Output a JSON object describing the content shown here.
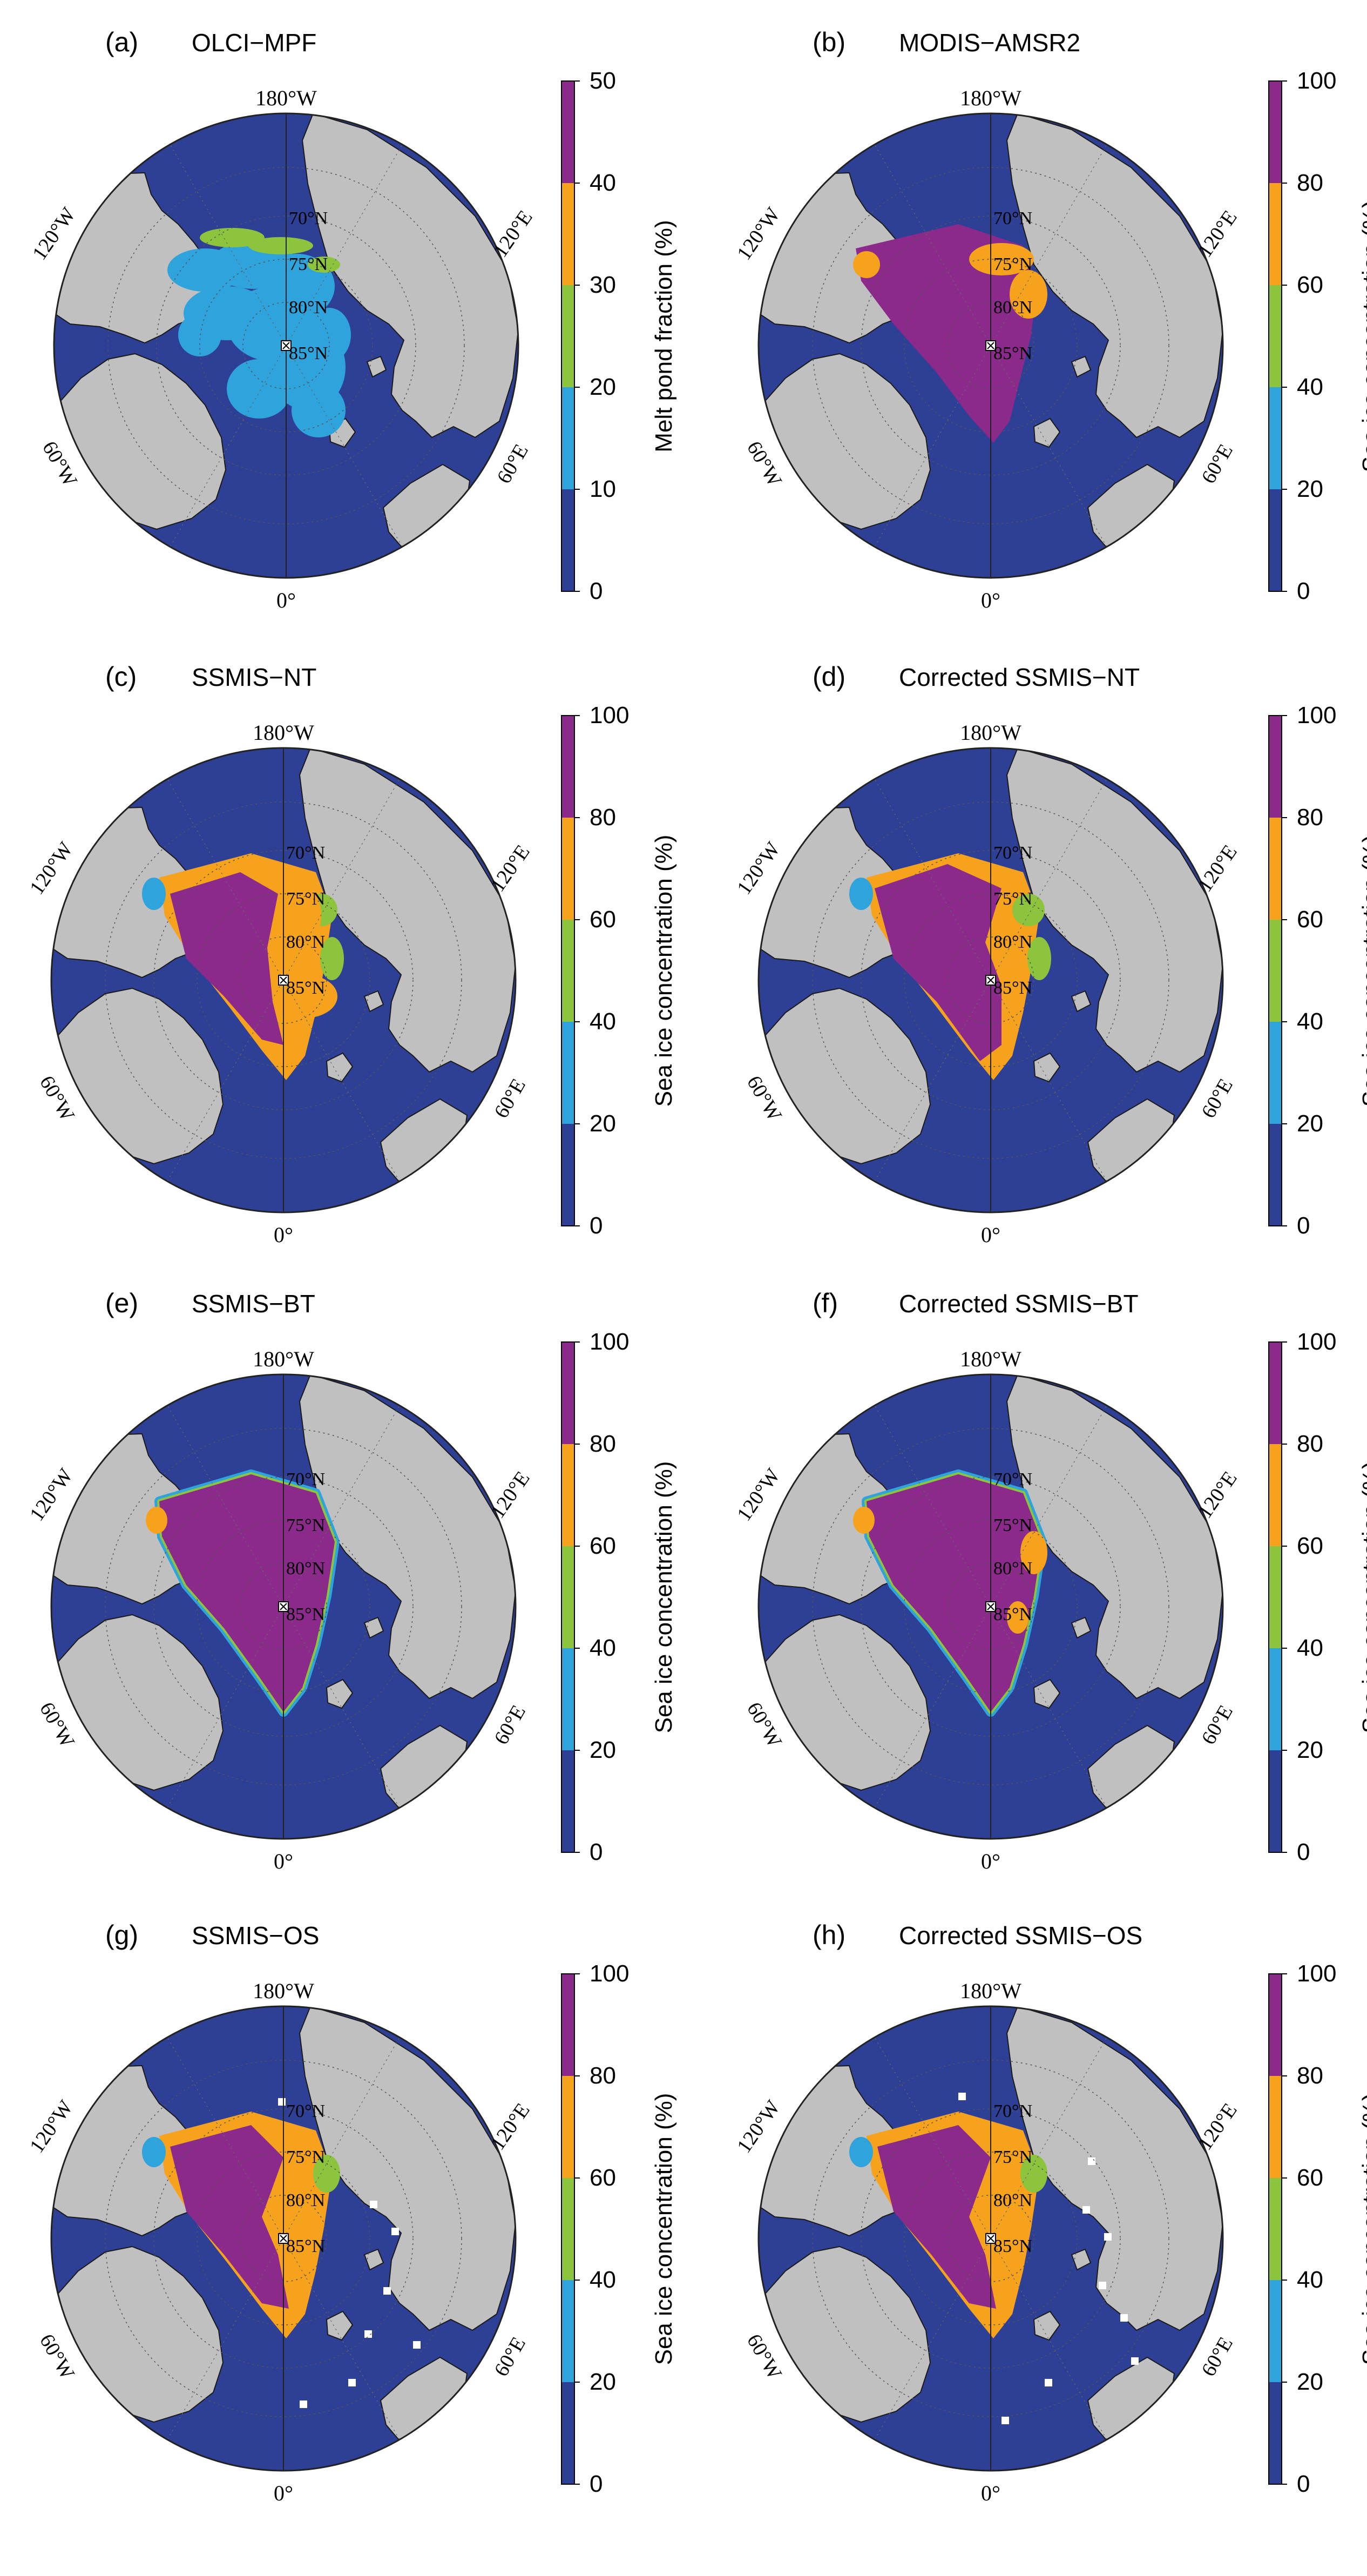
{
  "layout": "4x2 grid of polar-stereographic Arctic sea-ice maps",
  "colors": {
    "ocean": "#2e3f96",
    "land": "#c0c0c0",
    "ice_purple": "#8b2a8b",
    "ice_orange": "#f6a21c",
    "ice_green": "#8cc43e",
    "ice_light_blue": "#2ea3dc",
    "missing_white": "#ffffff",
    "coast": "#1a1a1a"
  },
  "colorbar_bins": [
    "#2e3f96",
    "#2ea3dc",
    "#8cc43e",
    "#f6a21c",
    "#8b2a8b"
  ],
  "map_labels": {
    "top": "180°W",
    "left": "120°W",
    "right": "120°E",
    "bottom_left": "60°W",
    "bottom_right": "60°E",
    "bottom": "0°",
    "lat_70": "70°N",
    "lat_75": "75°N",
    "lat_80": "80°N",
    "lat_85": "85°N"
  },
  "panels": [
    {
      "letter": "(a)",
      "title": "OLCI−MPF",
      "colorbar_label": "Melt pond fraction (%)",
      "colorbar_ticks": [
        "0",
        "10",
        "20",
        "30",
        "40",
        "50"
      ],
      "pattern": "melt_pond"
    },
    {
      "letter": "(b)",
      "title": "MODIS−AMSR2",
      "colorbar_label": "Sea ice concentration (%)",
      "colorbar_ticks": [
        "0",
        "20",
        "40",
        "60",
        "80",
        "100"
      ],
      "pattern": "modis"
    },
    {
      "letter": "(c)",
      "title": "SSMIS−NT",
      "colorbar_label": "Sea ice concentration (%)",
      "colorbar_ticks": [
        "0",
        "20",
        "40",
        "60",
        "80",
        "100"
      ],
      "pattern": "nt"
    },
    {
      "letter": "(d)",
      "title": "Corrected SSMIS−NT",
      "colorbar_label": "Sea ice concentration (%)",
      "colorbar_ticks": [
        "0",
        "20",
        "40",
        "60",
        "80",
        "100"
      ],
      "pattern": "cnt"
    },
    {
      "letter": "(e)",
      "title": "SSMIS−BT",
      "colorbar_label": "Sea ice concentration (%)",
      "colorbar_ticks": [
        "0",
        "20",
        "40",
        "60",
        "80",
        "100"
      ],
      "pattern": "bt"
    },
    {
      "letter": "(f)",
      "title": "Corrected SSMIS−BT",
      "colorbar_label": "Sea ice concentration (%)",
      "colorbar_ticks": [
        "0",
        "20",
        "40",
        "60",
        "80",
        "100"
      ],
      "pattern": "cbt"
    },
    {
      "letter": "(g)",
      "title": "SSMIS−OS",
      "colorbar_label": "Sea ice concentration (%)",
      "colorbar_ticks": [
        "0",
        "20",
        "40",
        "60",
        "80",
        "100"
      ],
      "pattern": "os"
    },
    {
      "letter": "(h)",
      "title": "Corrected SSMIS−OS",
      "colorbar_label": "Sea ice concentration (%)",
      "colorbar_ticks": [
        "0",
        "20",
        "40",
        "60",
        "80",
        "100"
      ],
      "pattern": "cos"
    }
  ]
}
